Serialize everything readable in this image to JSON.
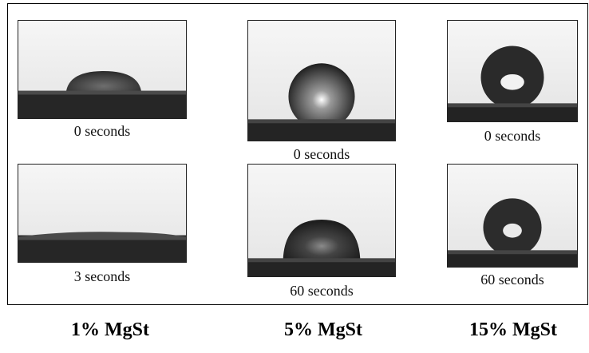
{
  "figure": {
    "groups": [
      {
        "label": "1% MgSt",
        "frames": [
          {
            "caption": "0 seconds"
          },
          {
            "caption": "3 seconds"
          }
        ]
      },
      {
        "label": "5% MgSt",
        "frames": [
          {
            "caption": "0 seconds"
          },
          {
            "caption": "60 seconds"
          }
        ]
      },
      {
        "label": "15% MgSt",
        "frames": [
          {
            "caption": "0 seconds"
          },
          {
            "caption": "60 seconds"
          }
        ]
      }
    ]
  }
}
